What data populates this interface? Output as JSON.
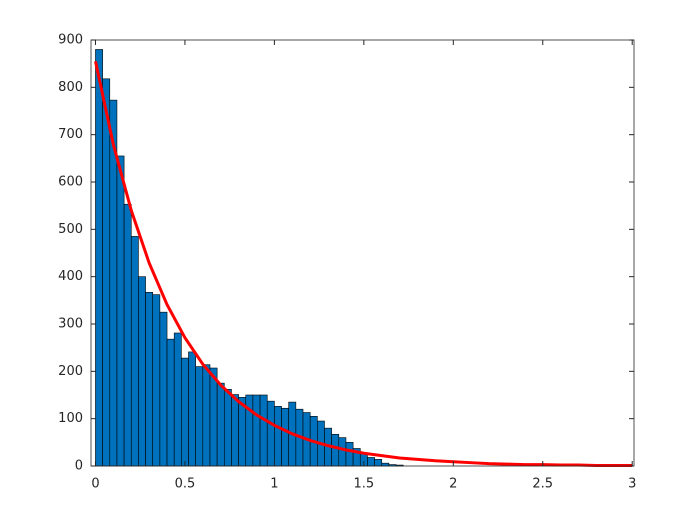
{
  "chart_data": {
    "type": "histogram",
    "bins": [
      0,
      0.04,
      0.08,
      0.12,
      0.16,
      0.2,
      0.24,
      0.28,
      0.32,
      0.36,
      0.4,
      0.44,
      0.48,
      0.52,
      0.56,
      0.6,
      0.64,
      0.68,
      0.72,
      0.76,
      0.8,
      0.84,
      0.88,
      0.92,
      0.96,
      1.0,
      1.04,
      1.08,
      1.12,
      1.16,
      1.2,
      1.24,
      1.28,
      1.32,
      1.36,
      1.4,
      1.44,
      1.48,
      1.52,
      1.56,
      1.6,
      1.64,
      1.68,
      1.72
    ],
    "values": [
      880,
      818,
      773,
      655,
      553,
      485,
      400,
      367,
      362,
      325,
      268,
      281,
      228,
      241,
      210,
      214,
      207,
      175,
      162,
      151,
      145,
      150,
      150,
      150,
      137,
      126,
      122,
      135,
      120,
      113,
      105,
      95,
      80,
      67,
      60,
      50,
      37,
      27,
      18,
      14,
      6,
      3,
      2
    ],
    "color": "#0072bd",
    "curve": {
      "x": [
        0,
        0.1,
        0.2,
        0.3,
        0.4,
        0.5,
        0.6,
        0.7,
        0.8,
        0.9,
        1.0,
        1.1,
        1.2,
        1.3,
        1.4,
        1.5,
        1.6,
        1.7,
        1.8,
        1.9,
        2.0,
        2.1,
        2.2,
        2.3,
        2.4,
        2.5,
        2.6,
        2.7,
        2.8,
        2.9,
        3.0
      ],
      "values": [
        855,
        679,
        540,
        429,
        341,
        271,
        215,
        171,
        136,
        108,
        86,
        68,
        54,
        43,
        34,
        27,
        22,
        17,
        14,
        11,
        9,
        7,
        5,
        4,
        3,
        3,
        2,
        2,
        1,
        1,
        1
      ],
      "color": "#ff0000"
    },
    "xlim": [
      -0.025,
      3.01
    ],
    "xticks": [
      0,
      0.5,
      1,
      1.5,
      2,
      2.5,
      3
    ],
    "ylim": [
      0,
      900
    ],
    "yticks": [
      0,
      100,
      200,
      300,
      400,
      500,
      600,
      700,
      800,
      900
    ],
    "grid": false
  }
}
